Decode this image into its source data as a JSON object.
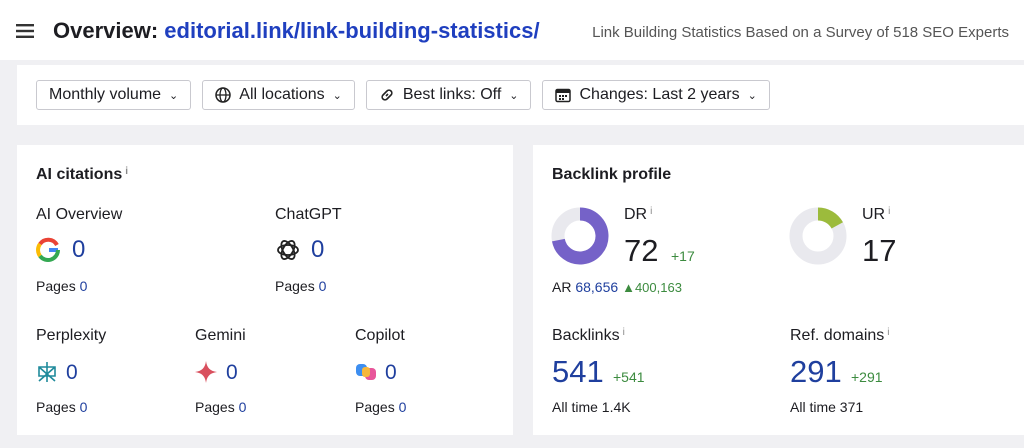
{
  "header": {
    "title_prefix": "Overview:",
    "url": "editorial.link/link-building-statistics/",
    "subtitle": "Link Building Statistics Based on a Survey of 518 SEO Experts"
  },
  "filters": [
    "Monthly volume",
    "All locations",
    "Best links: Off",
    "Changes: Last 2 years"
  ],
  "info": "i",
  "ai_citations": {
    "title": "AI citations",
    "items": [
      {
        "name": "AI Overview",
        "value": 0,
        "pages_label": "Pages",
        "pages": 0
      },
      {
        "name": "ChatGPT",
        "value": 0,
        "pages_label": "Pages",
        "pages": 0
      },
      {
        "name": "Perplexity",
        "value": 0,
        "pages_label": "Pages",
        "pages": 0
      },
      {
        "name": "Gemini",
        "value": 0,
        "pages_label": "Pages",
        "pages": 0
      },
      {
        "name": "Copilot",
        "value": 0,
        "pages_label": "Pages",
        "pages": 0
      }
    ]
  },
  "backlink_profile": {
    "title": "Backlink profile",
    "dr": {
      "label": "DR",
      "value": 72,
      "change": "+17",
      "range": [
        0,
        100
      ],
      "color": "#7562c8"
    },
    "ur": {
      "label": "UR",
      "value": 17,
      "range": [
        0,
        100
      ],
      "color": "#9cbb3c"
    },
    "ar": {
      "label": "AR",
      "value": "68,656",
      "change": "400,163"
    },
    "backlinks": {
      "label": "Backlinks",
      "value": 541,
      "change": "+541",
      "all_time_label": "All time",
      "all_time": "1.4K"
    },
    "ref_domains": {
      "label": "Ref. domains",
      "value": 291,
      "change": "+291",
      "all_time_label": "All time",
      "all_time": "371"
    }
  }
}
